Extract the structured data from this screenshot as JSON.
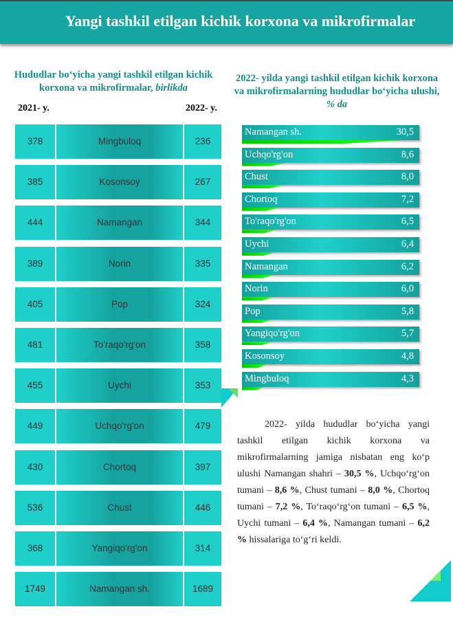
{
  "header": {
    "title": "Yangi tashkil etilgan kichik korxona va mikrofirmalar"
  },
  "left": {
    "title": "Hududlar bo‘yicha yangi tashkil etilgan kichik korxona va mikrofirmalar, ",
    "title_unit": "birlikda",
    "col1": "2021- y.",
    "col2": "2022- y.",
    "rows": [
      {
        "name": "Mingbuloq",
        "y2021": "378",
        "y2022": "236"
      },
      {
        "name": "Kosonsoy",
        "y2021": "385",
        "y2022": "267"
      },
      {
        "name": "Namangan",
        "y2021": "444",
        "y2022": "344"
      },
      {
        "name": "Norin",
        "y2021": "389",
        "y2022": "335"
      },
      {
        "name": "Pop",
        "y2021": "405",
        "y2022": "324"
      },
      {
        "name": "To'raqo'rg'on",
        "y2021": "481",
        "y2022": "358"
      },
      {
        "name": "Uychi",
        "y2021": "455",
        "y2022": "353"
      },
      {
        "name": "Uchqo'rg'on",
        "y2021": "449",
        "y2022": "479"
      },
      {
        "name": "Chortoq",
        "y2021": "430",
        "y2022": "397"
      },
      {
        "name": "Chust",
        "y2021": "536",
        "y2022": "446"
      },
      {
        "name": "Yangiqo'rg'on",
        "y2021": "368",
        "y2022": "314"
      },
      {
        "name": "Namangan sh.",
        "y2021": "1749",
        "y2022": "1689"
      }
    ]
  },
  "right": {
    "title": "2022- yilda yangi tashkil etilgan kichik korxona va mikrofirmalarning hududlar bo‘yicha  ulushi, ",
    "title_unit": "% da",
    "bars": [
      {
        "name": "Namangan sh.",
        "value": "30,5",
        "num": 30.5
      },
      {
        "name": "Uchqo'rg'on",
        "value": "8,6",
        "num": 8.6
      },
      {
        "name": "Chust",
        "value": "8,0",
        "num": 8.0
      },
      {
        "name": "Chortoq",
        "value": "7,2",
        "num": 7.2
      },
      {
        "name": "To'raqo'rg'on",
        "value": "6,5",
        "num": 6.5
      },
      {
        "name": "Uychi",
        "value": "6,4",
        "num": 6.4
      },
      {
        "name": "Namangan",
        "value": "6,2",
        "num": 6.2
      },
      {
        "name": "Norin",
        "value": "6,0",
        "num": 6.0
      },
      {
        "name": "Pop",
        "value": "5,8",
        "num": 5.8
      },
      {
        "name": "Yangiqo'rg'on",
        "value": "5,7",
        "num": 5.7
      },
      {
        "name": "Kosonsoy",
        "value": "4,8",
        "num": 4.8
      },
      {
        "name": "Mingbuloq",
        "value": "4,3",
        "num": 4.3
      }
    ]
  },
  "text": {
    "parts": [
      "2022- yilda hududlar bo‘yicha yangi tashkil etilgan kichik korxona va mikrofirmalarning jamiga nisbatan eng ko‘p ulushi Namangan shahri – ",
      "30,5 %",
      ", Uchqo‘rg‘on tumani – ",
      "8,6 %",
      ", Chust tumani – ",
      "8,0 %",
      ", Chortoq tumani – ",
      "7,2 %",
      ", To‘raqo‘rg‘on tumani – ",
      "6,5 %",
      ", Uychi tumani – ",
      "6,4 %",
      ", Namangan tumani – ",
      "6,2 %",
      " hissalariga to‘g‘ri keldi."
    ]
  }
}
